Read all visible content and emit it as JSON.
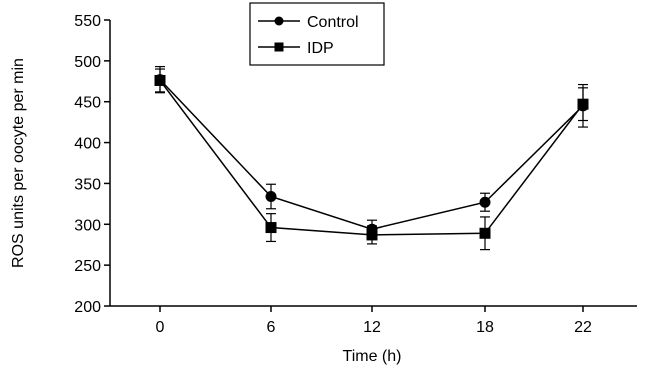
{
  "chart_data": {
    "type": "line",
    "title": "",
    "xlabel": "Time (h)",
    "ylabel": "ROS units per oocyte per min",
    "categories": [
      "0",
      "6",
      "12",
      "18",
      "22"
    ],
    "ylim": [
      200,
      550
    ],
    "yticks": [
      200,
      250,
      300,
      350,
      400,
      450,
      500,
      550
    ],
    "legend_position": "top-center",
    "grid": false,
    "series": [
      {
        "name": "Control",
        "marker": "circle",
        "values": [
          477,
          334,
          294,
          327,
          445
        ],
        "error": [
          16,
          15,
          11,
          11,
          26
        ],
        "color": "#000000"
      },
      {
        "name": "IDP",
        "marker": "square",
        "values": [
          476,
          296,
          287,
          289,
          447
        ],
        "error": [
          14,
          17,
          11,
          20,
          20
        ],
        "color": "#000000"
      }
    ]
  }
}
